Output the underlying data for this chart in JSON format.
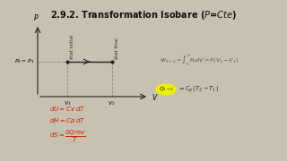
{
  "title": "2.9.2. Transformation Isobare ($P$=$Cte$)",
  "title_fontsize": 7.0,
  "bg_color": "#c8c0b0",
  "white_area": "#f0ece0",
  "xlabel": "V",
  "ylabel": "P",
  "p_label": "$P_2=P_1$",
  "v1_label": "$V_1$",
  "v2_label": "$V_2$",
  "state1_label": "état initial",
  "state2_label": "état final",
  "formula_W": "$W_{1-2} = \\int_{1}^{2} P_0 dV = P(V_2-V_1)$",
  "formula_dU": "$dU = Cv\\; dT$",
  "formula_dH": "$dH = Cp\\; dT$",
  "formula_dS": "$dS = \\dfrac{\\delta Q rev}{T}$",
  "arrow_color": "#222222",
  "dashed_color": "#888888",
  "formula_color": "#555555",
  "red_color": "#cc2200",
  "yellow_color": "#eeee00",
  "Q_label": "$Q_{1-2}$",
  "Q_formula": "$= C_p\\,(T_2-T_1)$"
}
